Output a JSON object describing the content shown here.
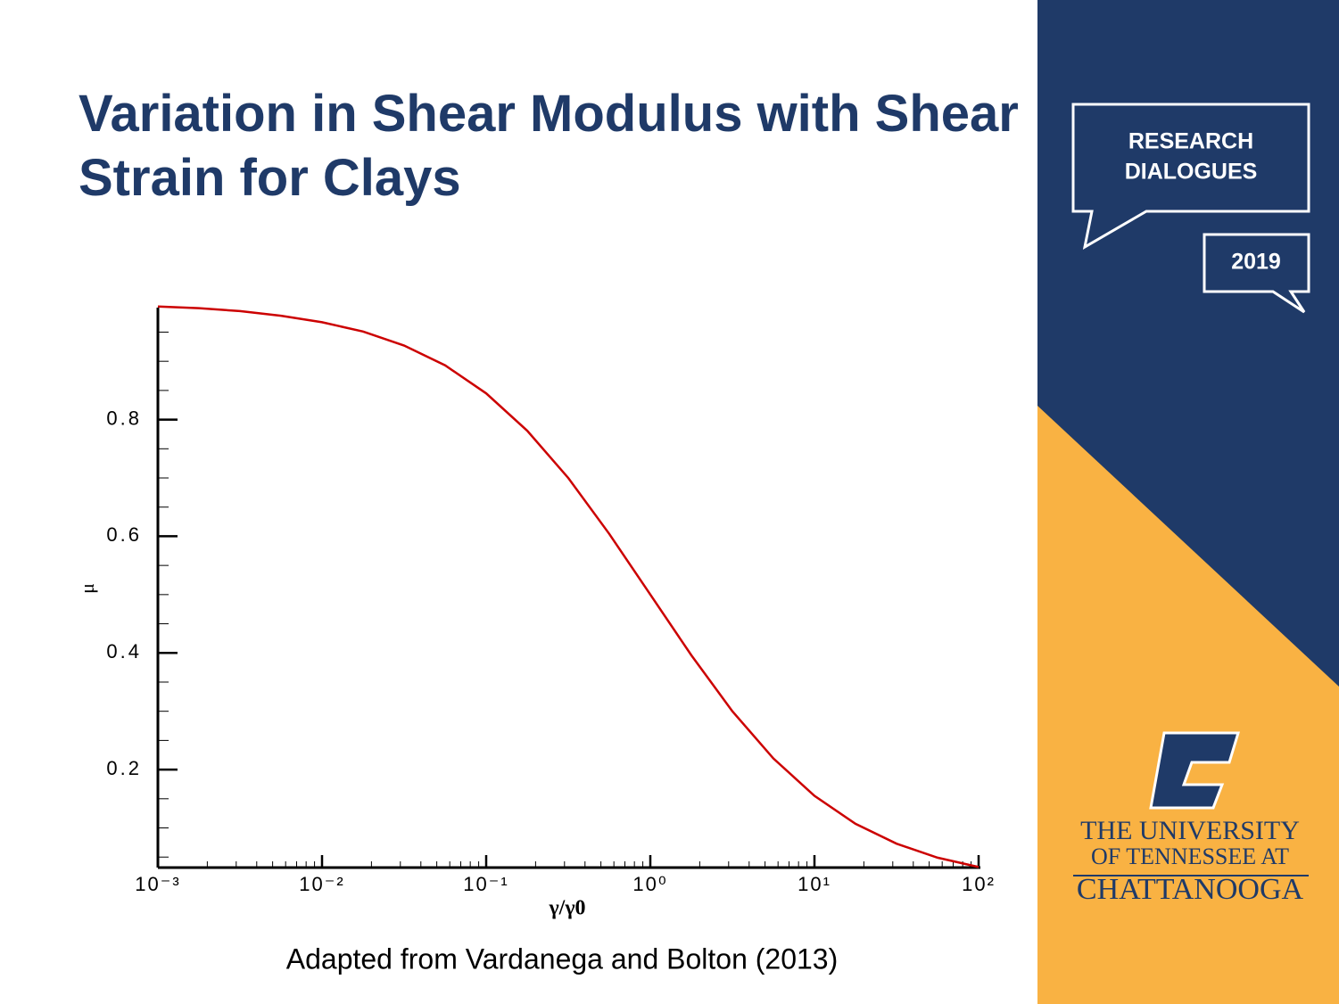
{
  "chart_data": {
    "type": "line",
    "title": "Variation in Shear Modulus with Shear Strain for Clays",
    "x_label": "γ/γ0",
    "y_label": "μ",
    "xscale": "log",
    "source": "Adapted from Vardanega and Bolton (2013)",
    "x": [
      0.001,
      0.001778,
      0.003162,
      0.005623,
      0.01,
      0.01778,
      0.03162,
      0.05623,
      0.1,
      0.1778,
      0.3162,
      0.5623,
      1,
      1.778,
      3.162,
      5.623,
      10,
      17.78,
      31.62,
      56.23,
      100
    ],
    "series": [
      {
        "name": "μ",
        "color": "#cc0000",
        "values": [
          0.994,
          0.991,
          0.986,
          0.978,
          0.967,
          0.951,
          0.927,
          0.893,
          0.845,
          0.781,
          0.7,
          0.604,
          0.5,
          0.396,
          0.3,
          0.219,
          0.155,
          0.107,
          0.073,
          0.049,
          0.033
        ]
      }
    ],
    "xlim": [
      0.001,
      100
    ],
    "ylim": [
      0.032,
      0.992
    ],
    "xticks": [
      {
        "value": 0.001,
        "label": "10⁻³"
      },
      {
        "value": 0.01,
        "label": "10⁻²"
      },
      {
        "value": 0.1,
        "label": "10⁻¹"
      },
      {
        "value": 1,
        "label": "10⁰"
      },
      {
        "value": 10,
        "label": "10¹"
      },
      {
        "value": 100,
        "label": "10²"
      }
    ],
    "xminorticks": [
      0.002,
      0.003,
      0.004,
      0.005,
      0.006,
      0.007,
      0.008,
      0.009,
      0.02,
      0.03,
      0.04,
      0.05,
      0.06,
      0.07,
      0.08,
      0.09,
      0.2,
      0.3,
      0.4,
      0.5,
      0.6,
      0.7,
      0.8,
      0.9,
      2,
      3,
      4,
      5,
      6,
      7,
      8,
      9,
      20,
      30,
      40,
      50,
      60,
      70,
      80,
      90
    ],
    "yticks": [
      0.2,
      0.4,
      0.6,
      0.8
    ],
    "yminorticks": [
      0.05,
      0.1,
      0.15,
      0.25,
      0.3,
      0.35,
      0.45,
      0.5,
      0.55,
      0.65,
      0.7,
      0.75,
      0.85,
      0.9,
      0.95
    ],
    "grid": false
  },
  "branding": {
    "event": [
      "RESEARCH",
      "DIALOGUES"
    ],
    "year": "2019",
    "university": [
      "THE UNIVERSITY",
      "OF TENNESSEE AT",
      "CHATTANOOGA"
    ]
  }
}
